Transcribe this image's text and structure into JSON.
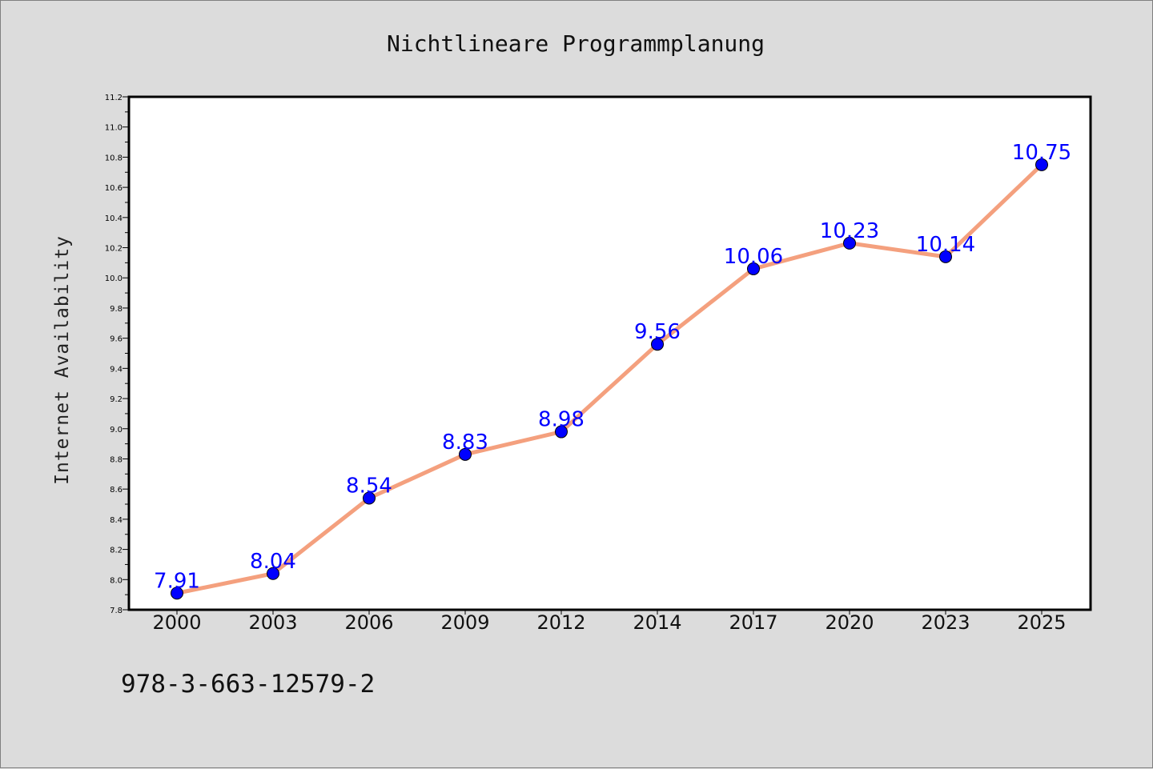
{
  "footer_text": "978-3-663-12579-2",
  "colors": {
    "background": "#dcdcdc",
    "plot_background": "#ffffff",
    "line": "#f4a07e",
    "marker": "#0000ff",
    "data_label": "#0000ff"
  },
  "chart_data": {
    "type": "line",
    "title": "Nichtlineare Programmplanung",
    "xlabel": "",
    "ylabel": "Internet Availability",
    "categories": [
      "2000",
      "2003",
      "2006",
      "2009",
      "2012",
      "2014",
      "2017",
      "2020",
      "2023",
      "2025"
    ],
    "series": [
      {
        "values": [
          7.91,
          8.04,
          8.54,
          8.83,
          8.98,
          9.56,
          10.06,
          10.23,
          10.14,
          10.75
        ],
        "labels": [
          "7.91",
          "8.04",
          "8.54",
          "8.83",
          "8.98",
          "9.56",
          "10.06",
          "10.23",
          "10.14",
          "10.75"
        ]
      }
    ],
    "ylim": [
      7.8,
      11.2
    ],
    "yticks": [
      "7.8",
      "8.0",
      "8.2",
      "8.4",
      "8.6",
      "8.8",
      "9.0",
      "9.2",
      "9.4",
      "9.6",
      "9.8",
      "10.0",
      "10.2",
      "10.4",
      "10.6",
      "10.8",
      "11.0",
      "11.2"
    ],
    "grid": false,
    "legend": "none",
    "markers": "circle"
  }
}
